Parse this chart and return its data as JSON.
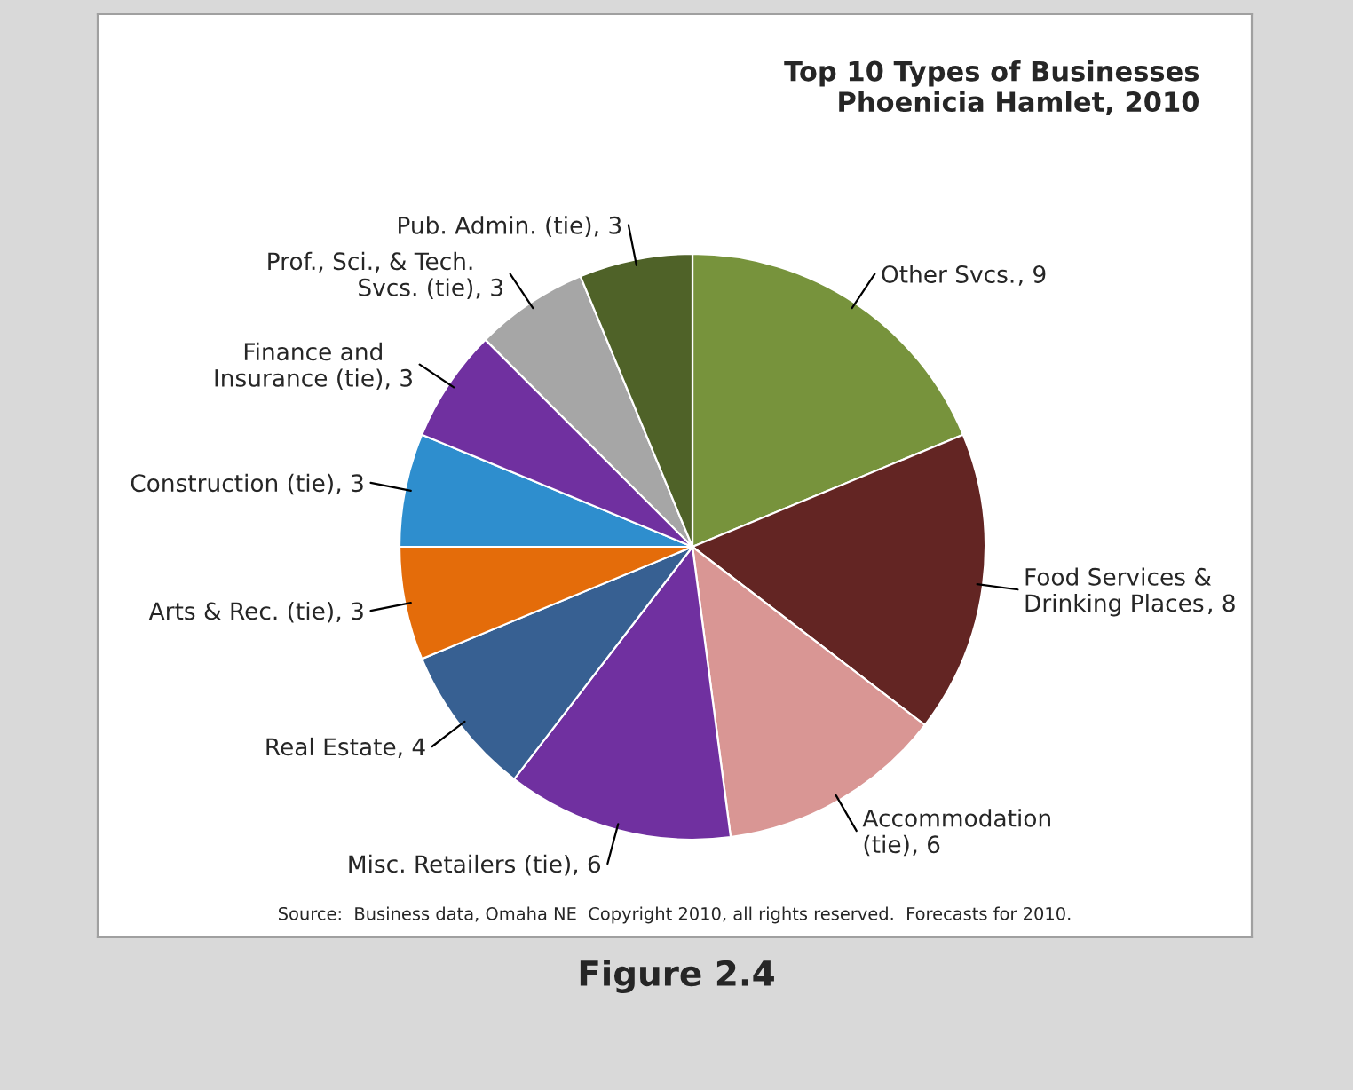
{
  "chart_data": {
    "type": "pie",
    "title": "Top 10 Types of Businesses\nPhoenicia Hamlet, 2010",
    "categories": [
      "Other Svcs.",
      "Food Services &\nDrinking Places",
      "Accommodation\n(tie)",
      "Misc. Retailers (tie)",
      "Real Estate",
      "Arts & Rec. (tie)",
      "Construction (tie)",
      "Finance and\nInsurance (tie)",
      "Prof., Sci., & Tech.\nSvcs. (tie)",
      "Pub. Admin. (tie)"
    ],
    "values": [
      9,
      8,
      6,
      6,
      4,
      3,
      3,
      3,
      3,
      3
    ],
    "colors": [
      "#77933c",
      "#632523",
      "#d99694",
      "#7030a0",
      "#376092",
      "#e46c0a",
      "#2e8ece",
      "#7030a0",
      "#a6a6a6",
      "#4f6228"
    ],
    "value_labels": [
      ", 9",
      ", 8",
      ", 6",
      ", 6",
      ", 4",
      ", 3",
      ", 3",
      ", 3",
      ", 3",
      ", 3"
    ],
    "annotations": [
      "Source:  Business data, Omaha NE  Copyright 2010, all rights reserved.  Forecasts for 2010.",
      "Figure 2.4"
    ]
  }
}
